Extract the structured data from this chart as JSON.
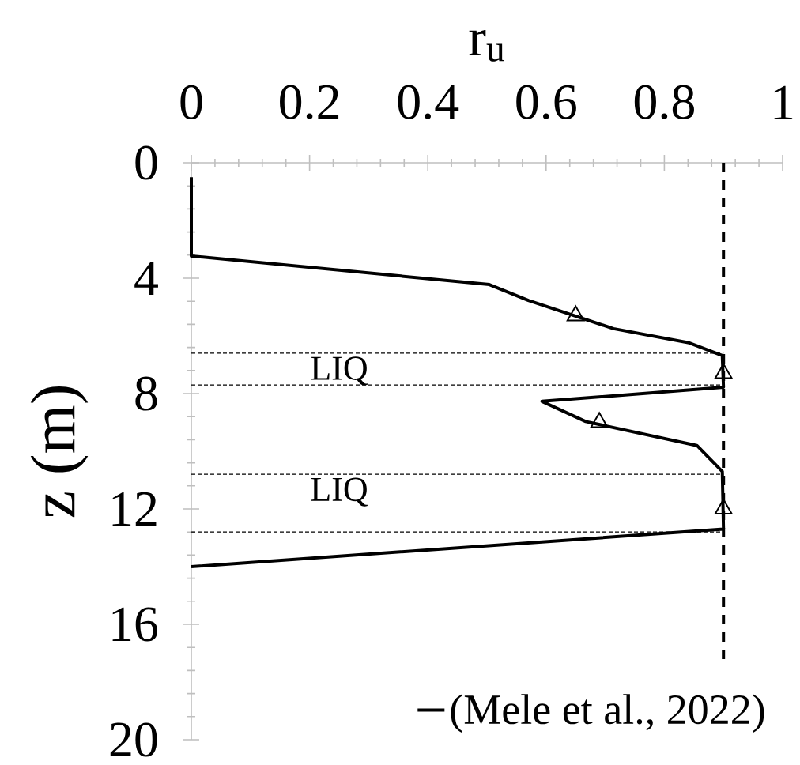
{
  "chart_data": {
    "type": "line",
    "xlabel": "r$_{u}$",
    "ylabel": "z (m)",
    "xlim": [
      0,
      1
    ],
    "xticks": [
      0,
      0.2,
      0.4,
      0.6,
      0.8,
      1
    ],
    "ylim": [
      20,
      0
    ],
    "yticks": [
      0,
      4,
      8,
      12,
      16,
      20
    ],
    "series": [
      {
        "name": "(Mele et al., 2022)",
        "color": "#000000",
        "marker": "none",
        "x": [
          0,
          0,
          0.504,
          0.57,
          0.714,
          0.842,
          0.898,
          0.9,
          0.593,
          0.667,
          0.855,
          0.898,
          0.9,
          0
        ],
        "values": [
          0.5,
          3.23,
          4.22,
          4.77,
          5.75,
          6.24,
          6.68,
          7.78,
          8.27,
          8.97,
          9.8,
          10.7,
          12.7,
          14.0
        ]
      },
      {
        "color": "#000000",
        "type": "scatter",
        "marker": "triangle",
        "x": [
          0.65,
          0.9,
          0.69,
          0.9
        ],
        "values": [
          5.3,
          7.3,
          9.0,
          12.0
        ]
      }
    ],
    "ref_lines": [
      {
        "axis": "x",
        "value": 0.9,
        "color": "#000000",
        "line_style": "dashed"
      },
      {
        "axis": "y",
        "value": 6.6,
        "color": "#000000",
        "line_style": "dotted",
        "label": "LIQ"
      },
      {
        "axis": "y",
        "value": 7.7,
        "color": "#000000",
        "line_style": "dotted"
      },
      {
        "axis": "y",
        "value": 10.8,
        "color": "#000000",
        "line_style": "dotted",
        "label": "LIQ"
      },
      {
        "axis": "y",
        "value": 12.8,
        "color": "#000000",
        "line_style": "dotted"
      }
    ],
    "grid": false,
    "legend": "bottom right"
  }
}
